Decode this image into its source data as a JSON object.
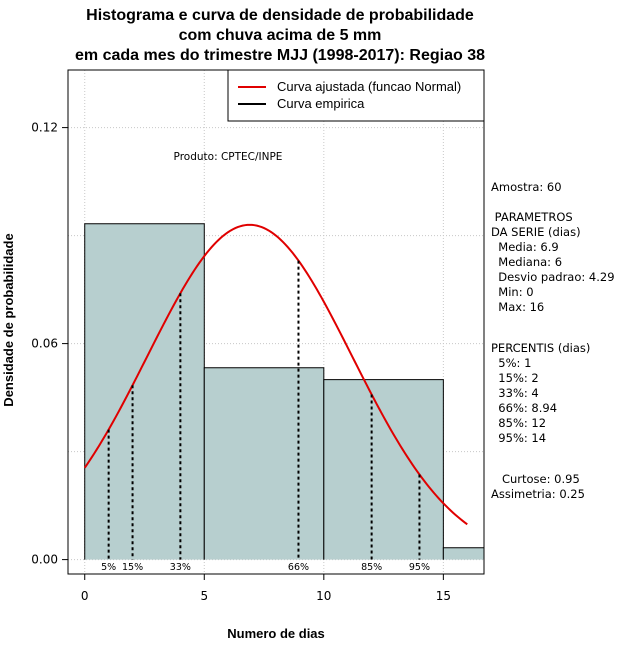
{
  "title_lines": [
    "Histograma e curva de densidade de probabilidade",
    "com chuva acima de 5 mm",
    "em cada mes do trimestre MJJ (1998-2017): Regiao 38"
  ],
  "product_label": "Produto: CPTEC/INPE",
  "side_panel": {
    "sample": "Amostra: 60",
    "params_title": " PARAMETROS",
    "params_subtitle": "DA SERIE (dias)",
    "params": [
      "  Media: 6.9",
      "  Mediana: 6",
      "  Desvio padrao: 4.29",
      "  Min: 0",
      "  Max: 16"
    ],
    "percentis_title": "PERCENTIS (dias)",
    "percentis": [
      "  5%: 1",
      "  15%: 2",
      "  33%: 4",
      "  66%: 8.94",
      "  85%: 12",
      "  95%: 14"
    ],
    "kurtosis": "   Curtose: 0.95",
    "skewness": "Assimetria: 0.25"
  },
  "chart_data": {
    "type": "bar",
    "xlabel": "Numero de dias",
    "ylabel": "Densidade de probabilidade",
    "xlim": [
      -0.7,
      16.7
    ],
    "ylim": [
      -0.004,
      0.136
    ],
    "x_ticks": [
      0,
      5,
      10,
      15
    ],
    "y_ticks": [
      0.0,
      0.06,
      0.12
    ],
    "y_tick_labels": [
      "0.00",
      "0.06",
      "0.12"
    ],
    "grid": true,
    "bins": [
      {
        "from": 0,
        "to": 5,
        "density": 0.0933
      },
      {
        "from": 5,
        "to": 10,
        "density": 0.0533
      },
      {
        "from": 10,
        "to": 15,
        "density": 0.05
      },
      {
        "from": 15,
        "to": 17,
        "density": 0.0033
      }
    ],
    "bar_color": "#b7cfcf",
    "normal_curve": {
      "name": "Curva ajustada (funcao Normal)",
      "mean": 6.9,
      "sd": 4.29,
      "x_range": [
        0,
        16
      ],
      "color": "#e00000"
    },
    "empirical_curve": {
      "name": "Curva empirica",
      "color": "#000000"
    },
    "percentiles": [
      {
        "label": "5%",
        "x": 1
      },
      {
        "label": "15%",
        "x": 2
      },
      {
        "label": "33%",
        "x": 4
      },
      {
        "label": "66%",
        "x": 8.94
      },
      {
        "label": "85%",
        "x": 12
      },
      {
        "label": "95%",
        "x": 14
      }
    ],
    "legend_position": "top-right"
  }
}
